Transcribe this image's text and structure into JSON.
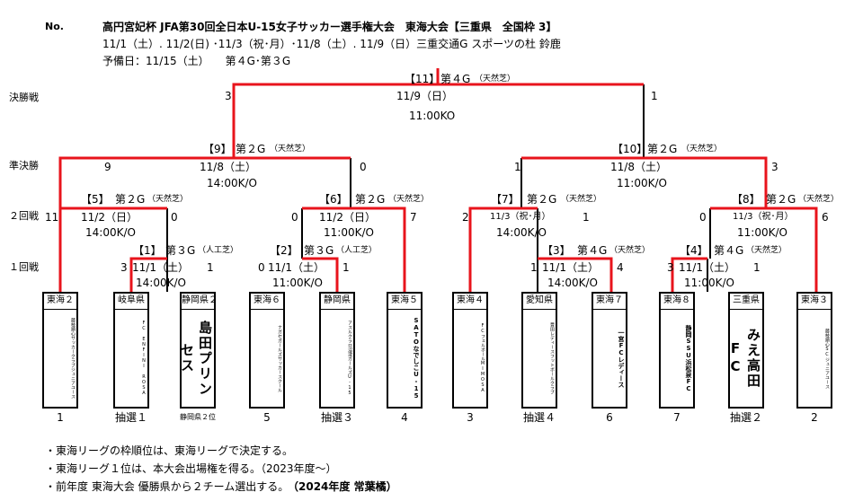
{
  "header": {
    "no_label": "No.",
    "title": "高円宮妃杯 JFA第30回全日本U-15女子サッカー選手権大会　東海大会【三重県　全国枠 3】",
    "dates": "11/1（土）. 11/2(日) ･11/3（祝･月）･11/8（土）. 11/9（日）三重交通G スポーツの杜 鈴鹿",
    "reserve": "予備日：11/15（土）　　第４G･第３G"
  },
  "rounds": {
    "final": "決勝戦",
    "semi": "準決勝",
    "r2": "２回戦",
    "r1": "１回戦"
  },
  "matches": {
    "m1": {
      "no": "【1】",
      "venue": "第３G",
      "surface": "（人工芝）",
      "date": "11/1（土）",
      "time": "14:00K/O",
      "score_l": "3",
      "score_r": "1"
    },
    "m2": {
      "no": "【2】",
      "venue": "第３G",
      "surface": "（人工芝）",
      "date": "11/1（土）",
      "time": "11:00K/O",
      "score_l": "0",
      "score_r": "1"
    },
    "m3": {
      "no": "【3】",
      "venue": "第４G",
      "surface": "（天然芝）",
      "date": "11/1（土）",
      "time": "14:00K/O",
      "score_l": "1",
      "score_r": "4"
    },
    "m4": {
      "no": "【4】",
      "venue": "第４G",
      "surface": "（天然芝）",
      "date": "11/1（土）",
      "time": "11:00K/O",
      "score_l": "3",
      "score_r": "1"
    },
    "m5": {
      "no": "【5】",
      "venue": "第２G",
      "surface": "（天然芝）",
      "date": "11/2（日）",
      "time": "14:00K/O",
      "score_l": "11",
      "score_r": "0"
    },
    "m6": {
      "no": "【6】",
      "venue": "第２G",
      "surface": "（天然芝）",
      "date": "11/2（日）",
      "time": "11:00K/O",
      "score_l": "0",
      "score_r": "7"
    },
    "m7": {
      "no": "【7】",
      "venue": "第２G",
      "surface": "（天然芝）",
      "date": "11/3（祝･月）",
      "time": "14:00K/O",
      "score_l": "2",
      "score_r": "1"
    },
    "m8": {
      "no": "【8】",
      "venue": "第２G",
      "surface": "（天然芝）",
      "date": "11/3（祝･月）",
      "time": "11:00K/O",
      "score_l": "0",
      "score_r": "6"
    },
    "m9": {
      "no": "【9】",
      "venue": "第２G",
      "surface": "（天然芝）",
      "date": "11/8（土）",
      "time": "14:00K/O",
      "score_l": "9",
      "score_r": "0"
    },
    "m10": {
      "no": "【10】",
      "venue": "第２G",
      "surface": "（天然芝）",
      "date": "11/8（土）",
      "time": "11:00K/O",
      "score_l": "1",
      "score_r": "3"
    },
    "m11": {
      "no": "【11】",
      "venue": "第４G",
      "surface": "（天然芝）",
      "date": "11/9（日）",
      "time": "11:00KO",
      "score_l": "3",
      "score_r": "1"
    }
  },
  "teams": [
    {
      "header": "東海２",
      "name": "藤枝順心サッカークラブジュニアユース",
      "seed": "1"
    },
    {
      "header": "岐阜県",
      "name": "FC ENFINI ROSA",
      "seed": "抽選１"
    },
    {
      "header": "静岡県２",
      "name": "島田プリンセス",
      "seed": "静岡県２位"
    },
    {
      "header": "東海６",
      "name": "ナガセガールズサッカースクール",
      "seed": "5"
    },
    {
      "header": "静岡県",
      "name": "アスルクラロ沼津ガールズU-15",
      "seed": "抽選３"
    },
    {
      "header": "東海５",
      "name": "SATOなでしこU-15",
      "seed": "4"
    },
    {
      "header": "東海４",
      "name": "FCフェルボールMIMOSA",
      "seed": "3"
    },
    {
      "header": "愛知県",
      "name": "豊田レディースフットボールクラブ",
      "seed": "抽選４"
    },
    {
      "header": "東海７",
      "name": "一宮FCレディース",
      "seed": "6"
    },
    {
      "header": "東海８",
      "name": "静岡SSU浜松泉FC",
      "seed": "7"
    },
    {
      "header": "三重県",
      "name": "みえ高田FC",
      "seed": "抽選２"
    },
    {
      "header": "東海３",
      "name": "藤枝順心SCジュニアユース",
      "seed": "2"
    }
  ],
  "notes": [
    "・東海リーグの枠順位は、東海リーグで決定する。",
    "・東海リーグ１位は、本大会出場権を得る。（2023年度～）",
    "・前年度 東海大会 優勝県から２チーム選出する。",
    "（2024年度 常葉橘）"
  ],
  "colors": {
    "winner_line": "#e8141c",
    "line": "#000000"
  }
}
